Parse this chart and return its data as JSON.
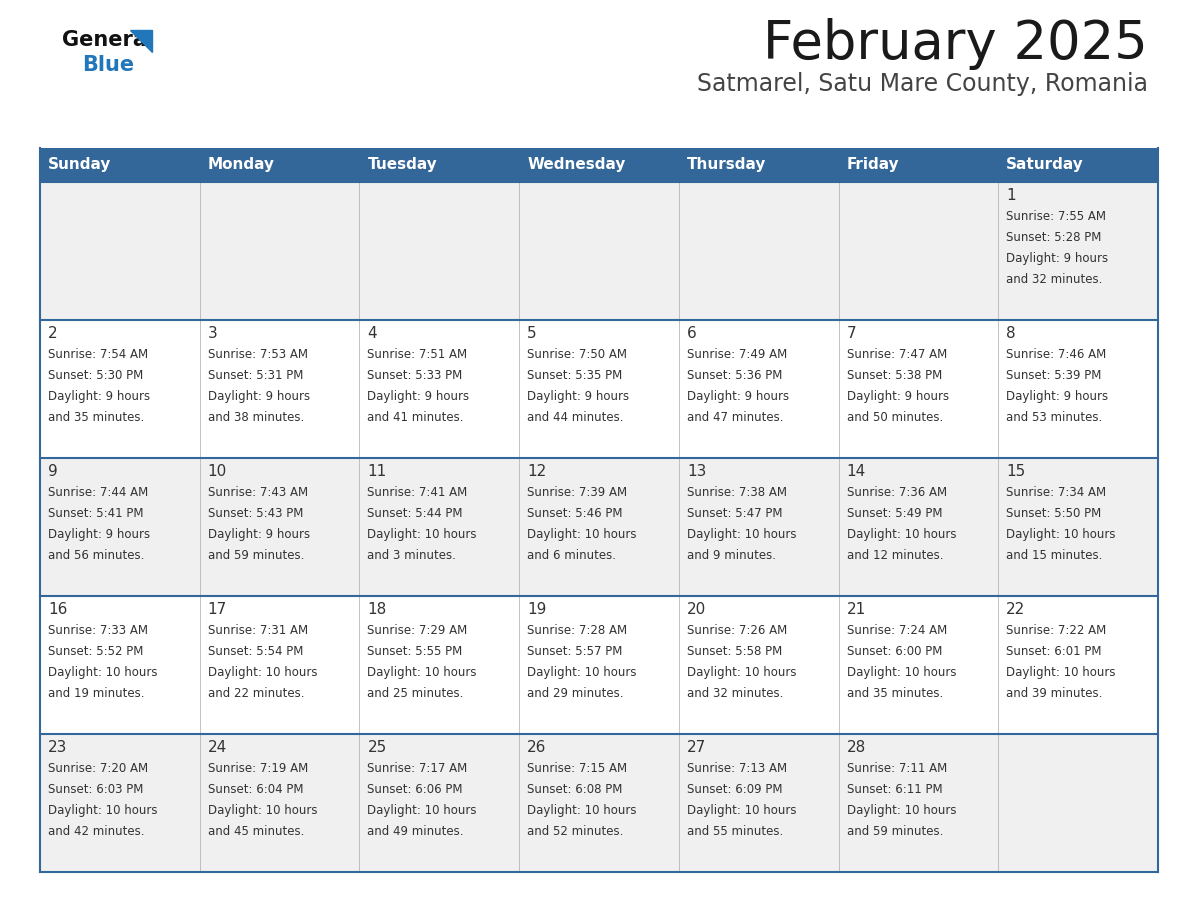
{
  "title": "February 2025",
  "subtitle": "Satmarel, Satu Mare County, Romania",
  "days_of_week": [
    "Sunday",
    "Monday",
    "Tuesday",
    "Wednesday",
    "Thursday",
    "Friday",
    "Saturday"
  ],
  "header_bg": "#336699",
  "header_text": "#ffffff",
  "row_bg_odd": "#f0f0f0",
  "row_bg_even": "#ffffff",
  "divider_color": "#336699",
  "text_color": "#333333",
  "calendar": [
    [
      null,
      null,
      null,
      null,
      null,
      null,
      {
        "day": "1",
        "sunrise": "7:55 AM",
        "sunset": "5:28 PM",
        "daylight_h": "9 hours",
        "daylight_m": "32 minutes"
      }
    ],
    [
      {
        "day": "2",
        "sunrise": "7:54 AM",
        "sunset": "5:30 PM",
        "daylight_h": "9 hours",
        "daylight_m": "35 minutes"
      },
      {
        "day": "3",
        "sunrise": "7:53 AM",
        "sunset": "5:31 PM",
        "daylight_h": "9 hours",
        "daylight_m": "38 minutes"
      },
      {
        "day": "4",
        "sunrise": "7:51 AM",
        "sunset": "5:33 PM",
        "daylight_h": "9 hours",
        "daylight_m": "41 minutes"
      },
      {
        "day": "5",
        "sunrise": "7:50 AM",
        "sunset": "5:35 PM",
        "daylight_h": "9 hours",
        "daylight_m": "44 minutes"
      },
      {
        "day": "6",
        "sunrise": "7:49 AM",
        "sunset": "5:36 PM",
        "daylight_h": "9 hours",
        "daylight_m": "47 minutes"
      },
      {
        "day": "7",
        "sunrise": "7:47 AM",
        "sunset": "5:38 PM",
        "daylight_h": "9 hours",
        "daylight_m": "50 minutes"
      },
      {
        "day": "8",
        "sunrise": "7:46 AM",
        "sunset": "5:39 PM",
        "daylight_h": "9 hours",
        "daylight_m": "53 minutes"
      }
    ],
    [
      {
        "day": "9",
        "sunrise": "7:44 AM",
        "sunset": "5:41 PM",
        "daylight_h": "9 hours",
        "daylight_m": "56 minutes"
      },
      {
        "day": "10",
        "sunrise": "7:43 AM",
        "sunset": "5:43 PM",
        "daylight_h": "9 hours",
        "daylight_m": "59 minutes"
      },
      {
        "day": "11",
        "sunrise": "7:41 AM",
        "sunset": "5:44 PM",
        "daylight_h": "10 hours",
        "daylight_m": "3 minutes"
      },
      {
        "day": "12",
        "sunrise": "7:39 AM",
        "sunset": "5:46 PM",
        "daylight_h": "10 hours",
        "daylight_m": "6 minutes"
      },
      {
        "day": "13",
        "sunrise": "7:38 AM",
        "sunset": "5:47 PM",
        "daylight_h": "10 hours",
        "daylight_m": "9 minutes"
      },
      {
        "day": "14",
        "sunrise": "7:36 AM",
        "sunset": "5:49 PM",
        "daylight_h": "10 hours",
        "daylight_m": "12 minutes"
      },
      {
        "day": "15",
        "sunrise": "7:34 AM",
        "sunset": "5:50 PM",
        "daylight_h": "10 hours",
        "daylight_m": "15 minutes"
      }
    ],
    [
      {
        "day": "16",
        "sunrise": "7:33 AM",
        "sunset": "5:52 PM",
        "daylight_h": "10 hours",
        "daylight_m": "19 minutes"
      },
      {
        "day": "17",
        "sunrise": "7:31 AM",
        "sunset": "5:54 PM",
        "daylight_h": "10 hours",
        "daylight_m": "22 minutes"
      },
      {
        "day": "18",
        "sunrise": "7:29 AM",
        "sunset": "5:55 PM",
        "daylight_h": "10 hours",
        "daylight_m": "25 minutes"
      },
      {
        "day": "19",
        "sunrise": "7:28 AM",
        "sunset": "5:57 PM",
        "daylight_h": "10 hours",
        "daylight_m": "29 minutes"
      },
      {
        "day": "20",
        "sunrise": "7:26 AM",
        "sunset": "5:58 PM",
        "daylight_h": "10 hours",
        "daylight_m": "32 minutes"
      },
      {
        "day": "21",
        "sunrise": "7:24 AM",
        "sunset": "6:00 PM",
        "daylight_h": "10 hours",
        "daylight_m": "35 minutes"
      },
      {
        "day": "22",
        "sunrise": "7:22 AM",
        "sunset": "6:01 PM",
        "daylight_h": "10 hours",
        "daylight_m": "39 minutes"
      }
    ],
    [
      {
        "day": "23",
        "sunrise": "7:20 AM",
        "sunset": "6:03 PM",
        "daylight_h": "10 hours",
        "daylight_m": "42 minutes"
      },
      {
        "day": "24",
        "sunrise": "7:19 AM",
        "sunset": "6:04 PM",
        "daylight_h": "10 hours",
        "daylight_m": "45 minutes"
      },
      {
        "day": "25",
        "sunrise": "7:17 AM",
        "sunset": "6:06 PM",
        "daylight_h": "10 hours",
        "daylight_m": "49 minutes"
      },
      {
        "day": "26",
        "sunrise": "7:15 AM",
        "sunset": "6:08 PM",
        "daylight_h": "10 hours",
        "daylight_m": "52 minutes"
      },
      {
        "day": "27",
        "sunrise": "7:13 AM",
        "sunset": "6:09 PM",
        "daylight_h": "10 hours",
        "daylight_m": "55 minutes"
      },
      {
        "day": "28",
        "sunrise": "7:11 AM",
        "sunset": "6:11 PM",
        "daylight_h": "10 hours",
        "daylight_m": "59 minutes"
      },
      null
    ]
  ]
}
